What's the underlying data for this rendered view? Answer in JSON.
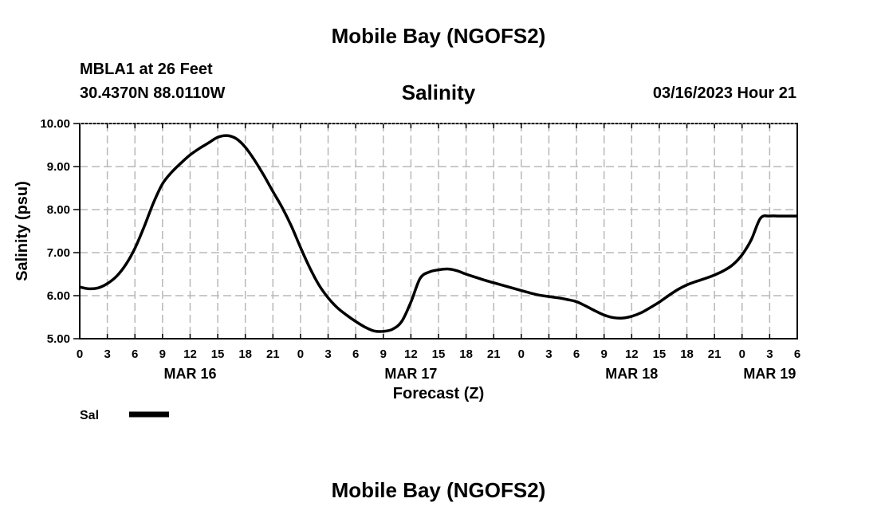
{
  "header": {
    "main_title": "Mobile Bay (NGOFS2)",
    "station": "MBLA1 at 26 Feet",
    "coordinates": "30.4370N  88.0110W",
    "datetime": "03/16/2023 Hour 21",
    "footer_title": "Mobile Bay (NGOFS2)"
  },
  "chart_data": {
    "type": "line",
    "title": "Salinity",
    "xlabel": "Forecast (Z)",
    "ylabel": "Salinity (psu)",
    "xlim": [
      0,
      78
    ],
    "ylim": [
      5.0,
      10.0
    ],
    "grid": true,
    "x_tick_labels": [
      "0",
      "3",
      "6",
      "9",
      "12",
      "15",
      "18",
      "21",
      "0",
      "3",
      "6",
      "9",
      "12",
      "15",
      "18",
      "21",
      "0",
      "3",
      "6",
      "9",
      "12",
      "15",
      "18",
      "21",
      "0",
      "3",
      "6"
    ],
    "y_tick_labels": [
      "5.00",
      "6.00",
      "7.00",
      "8.00",
      "9.00",
      "10.00"
    ],
    "y_tick_values": [
      5,
      6,
      7,
      8,
      9,
      10
    ],
    "date_labels": [
      {
        "label": "MAR 16",
        "x": 12
      },
      {
        "label": "MAR 17",
        "x": 36
      },
      {
        "label": "MAR 18",
        "x": 60
      },
      {
        "label": "MAR 19",
        "x": 75
      }
    ],
    "legend": [
      {
        "label": "Sal",
        "color": "#000000"
      }
    ],
    "series": [
      {
        "name": "Sal",
        "color": "#000000",
        "x": [
          0,
          1,
          2,
          3,
          4,
          5,
          6,
          7,
          8,
          9,
          10,
          11,
          12,
          13,
          14,
          15,
          16,
          17,
          18,
          19,
          20,
          21,
          22,
          23,
          24,
          25,
          26,
          27,
          28,
          29,
          30,
          31,
          32,
          33,
          34,
          35,
          36,
          37,
          38,
          39,
          40,
          41,
          42,
          43,
          44,
          45,
          46,
          47,
          48,
          49,
          50,
          51,
          52,
          53,
          54,
          55,
          56,
          57,
          58,
          59,
          60,
          61,
          62,
          63,
          64,
          65,
          66,
          67,
          68,
          69,
          70,
          71,
          72,
          73,
          74,
          75,
          76,
          77,
          78
        ],
        "values": [
          6.2,
          6.16,
          6.18,
          6.28,
          6.45,
          6.72,
          7.1,
          7.6,
          8.15,
          8.6,
          8.87,
          9.08,
          9.27,
          9.42,
          9.55,
          9.68,
          9.72,
          9.65,
          9.45,
          9.15,
          8.8,
          8.42,
          8.05,
          7.62,
          7.12,
          6.65,
          6.25,
          5.95,
          5.72,
          5.55,
          5.4,
          5.27,
          5.18,
          5.17,
          5.22,
          5.4,
          5.85,
          6.4,
          6.55,
          6.6,
          6.62,
          6.58,
          6.5,
          6.43,
          6.36,
          6.3,
          6.24,
          6.18,
          6.12,
          6.06,
          6.01,
          5.98,
          5.95,
          5.91,
          5.86,
          5.76,
          5.65,
          5.55,
          5.49,
          5.48,
          5.52,
          5.6,
          5.72,
          5.85,
          6.0,
          6.14,
          6.25,
          6.33,
          6.4,
          6.48,
          6.58,
          6.72,
          6.95,
          7.3,
          7.8,
          7.85,
          7.85,
          7.85,
          7.85
        ]
      }
    ]
  }
}
